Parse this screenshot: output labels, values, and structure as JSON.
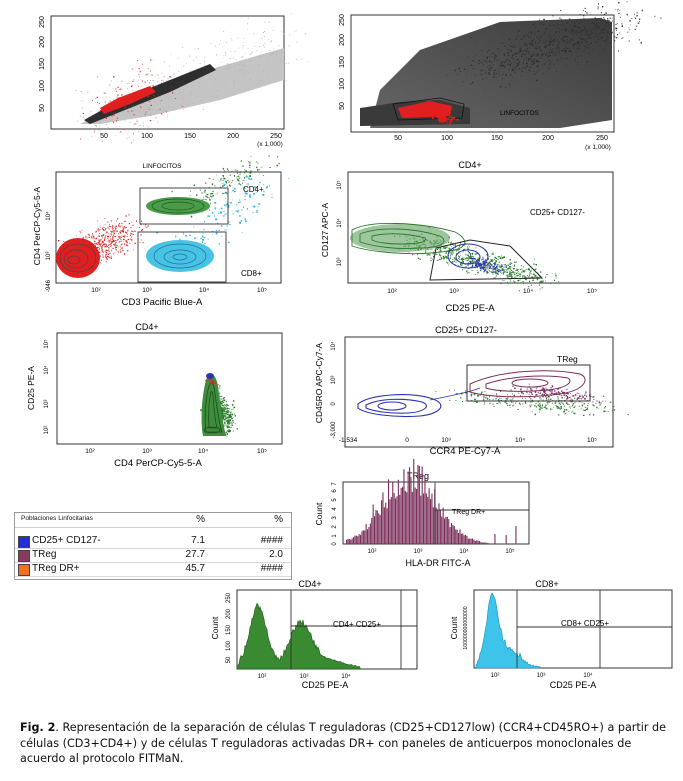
{
  "figure": {
    "p1": {
      "xticks": [
        "50",
        "100",
        "150",
        "200",
        "250"
      ],
      "xunit": "(x 1,000)",
      "yticks": [
        "50",
        "100",
        "150",
        "200",
        "250"
      ]
    },
    "p2": {
      "xticks": [
        "50",
        "100",
        "150",
        "200",
        "250"
      ],
      "xunit": "(x 1,000)",
      "yticks": [
        "50",
        "100",
        "150",
        "200",
        "250"
      ],
      "gate_label": "LINFOCITOS"
    },
    "p3": {
      "title": "LINFOCITOS",
      "xlabel": "CD3 Pacific Blue-A",
      "ylabel": "CD4 PerCP-Cy5-5-A",
      "gate_top": "CD4+",
      "gate_bottom": "CD8+",
      "neg": "-946"
    },
    "p4": {
      "title": "CD4+",
      "xlabel": "CD25 PE-A",
      "ylabel": "CD127 APC-A",
      "gate_label": "CD25+ CD127-"
    },
    "p5": {
      "title": "CD4+",
      "xlabel": "CD4 PerCP-Cy5-5-A",
      "ylabel": "CD25 PE-A"
    },
    "p6": {
      "title": "CD25+ CD127-",
      "xlabel": "CCR4 PE-Cy7-A",
      "ylabel": "CD45RO APC-Cy7-A",
      "gate_label": "TReg",
      "neg_x": "-1,534",
      "zero": "0",
      "neg_y": "-3,000"
    },
    "p7": {
      "title": "TReg",
      "xlabel": "HLA-DR FITC-A",
      "ylabel": "Count",
      "gate_label": "TReg DR+",
      "yticks": [
        "0",
        "1",
        "2",
        "3",
        "4",
        "5",
        "6",
        "7"
      ]
    },
    "p8": {
      "title": "CD4+",
      "xlabel": "CD25 PE-A",
      "ylabel": "Count",
      "gate_label": "CD4+ CD25+",
      "yticks": [
        "50",
        "100",
        "150",
        "200",
        "250"
      ]
    },
    "p9": {
      "title": "CD8+",
      "xlabel": "CD25 PE-A",
      "ylabel": "Count",
      "gate_label": "CD8+ CD25+",
      "yticks": [
        "100000000000000"
      ]
    },
    "log_ticks": [
      "10²",
      "10³",
      "10⁴",
      "10⁵"
    ]
  },
  "table": {
    "header": {
      "name": "Poblaciones Linfocitarias",
      "col1": "%",
      "col2": "%"
    },
    "rows": [
      {
        "name": "CD25+ CD127-",
        "v1": "7.1",
        "v2": "####",
        "color": "#1f2fd0"
      },
      {
        "name": "TReg",
        "v1": "27.7",
        "v2": "2.0",
        "color": "#8a3a5e"
      },
      {
        "name": "TReg DR+",
        "v1": "45.7",
        "v2": "####",
        "color": "#f07020"
      }
    ]
  },
  "caption": {
    "label": "Fig. 2",
    "text": ". Representación de la separación de células T reguladoras (CD25+CD127low) (CCR4+CD45RO+) a partir de células (CD3+CD4+) y de células T reguladoras activadas DR+ con paneles de anticuerpos monoclonales de acuerdo al protocolo FITMaN."
  },
  "colors": {
    "dark": "#3a3a3a",
    "light": "#b8b8b8",
    "red": "#e0201c",
    "green": "#2c7a2a",
    "cyan": "#31b8e0",
    "blue": "#2a35b0",
    "purple": "#7a2e5a"
  }
}
